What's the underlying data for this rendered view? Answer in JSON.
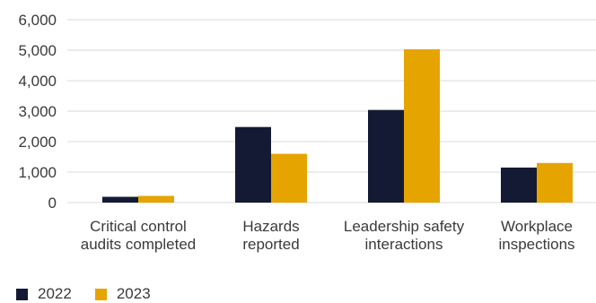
{
  "chart_data": {
    "type": "bar",
    "categories": [
      [
        "Critical control",
        "audits completed"
      ],
      [
        "Hazards",
        "reported"
      ],
      [
        "Leadership safety",
        "interactions"
      ],
      [
        "Workplace",
        "inspections"
      ]
    ],
    "series": [
      {
        "name": "2022",
        "color": "#141a33",
        "values": [
          190,
          2480,
          3040,
          1150
        ]
      },
      {
        "name": "2023",
        "color": "#e5a400",
        "values": [
          220,
          1600,
          5030,
          1300
        ]
      }
    ],
    "ylim": [
      0,
      6000
    ],
    "yticks": [
      "0",
      "1,000",
      "2,000",
      "3,000",
      "4,000",
      "5,000",
      "6,000"
    ],
    "ytick_values": [
      0,
      1000,
      2000,
      3000,
      4000,
      5000,
      6000
    ],
    "grid": true,
    "legend_position": "bottom-left"
  }
}
